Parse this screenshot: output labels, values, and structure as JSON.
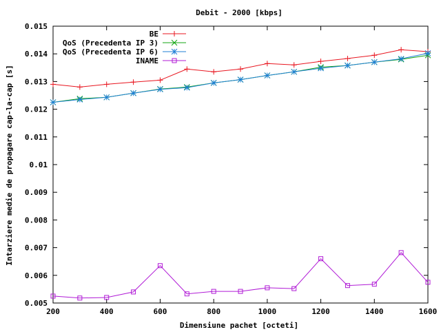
{
  "chart_data": {
    "type": "line",
    "title": "Debit - 2000 [kbps]",
    "xlabel": "Dimensiune pachet [octeti]",
    "ylabel": "Intarziere medie de propagare cap-la-cap [s]",
    "xlim": [
      200,
      1600
    ],
    "ylim": [
      0.005,
      0.015
    ],
    "xticks": [
      200,
      400,
      600,
      800,
      1000,
      1200,
      1400,
      1600
    ],
    "xtick_labels": [
      "200",
      "400",
      "600",
      "800",
      "1000",
      "1200",
      "1400",
      "1600"
    ],
    "yticks": [
      0.005,
      0.006,
      0.007,
      0.008,
      0.009,
      0.01,
      0.011,
      0.012,
      0.013,
      0.014,
      0.015
    ],
    "ytick_labels": [
      "0.005",
      "0.006",
      "0.007",
      "0.008",
      "0.009",
      "0.01",
      "0.011",
      "0.012",
      "0.013",
      "0.014",
      "0.015"
    ],
    "grid": false,
    "legend_position": "top-right",
    "x": [
      200,
      300,
      400,
      500,
      600,
      700,
      800,
      900,
      1000,
      1100,
      1200,
      1300,
      1400,
      1500,
      1600
    ],
    "series": [
      {
        "name": "BE",
        "color": "#e8141e",
        "marker": "plus",
        "values": [
          0.0129,
          0.0128,
          0.0129,
          0.01298,
          0.01305,
          0.01345,
          0.01335,
          0.01345,
          0.01365,
          0.0136,
          0.01373,
          0.01383,
          0.01395,
          0.01415,
          0.01408
        ]
      },
      {
        "name": "QoS (Precedenta IP 3)",
        "color": "#11a511",
        "marker": "cross",
        "values": [
          0.01225,
          0.01238,
          0.01243,
          0.01258,
          0.01273,
          0.0128,
          0.01295,
          0.01307,
          0.01322,
          0.01335,
          0.01352,
          0.01358,
          0.0137,
          0.0138,
          0.01395
        ]
      },
      {
        "name": "QoS (Precedenta IP 6)",
        "color": "#1f7fd6",
        "marker": "star",
        "values": [
          0.01225,
          0.01235,
          0.01243,
          0.01258,
          0.01272,
          0.01278,
          0.01295,
          0.01307,
          0.01322,
          0.01335,
          0.01348,
          0.01358,
          0.0137,
          0.01382,
          0.01402
        ]
      },
      {
        "name": "INAME",
        "color": "#b01ad6",
        "marker": "square",
        "values": [
          0.00525,
          0.00518,
          0.0052,
          0.0054,
          0.00635,
          0.00533,
          0.00542,
          0.00542,
          0.00555,
          0.00552,
          0.0066,
          0.00563,
          0.00568,
          0.00682,
          0.00575
        ]
      }
    ]
  }
}
